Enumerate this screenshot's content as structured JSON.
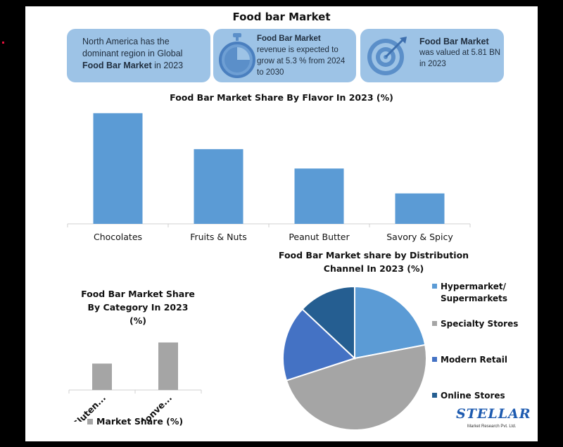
{
  "title": "Food bar Market",
  "info_boxes": [
    {
      "text_pre": "North America has the dominant region in Global ",
      "text_bold": "Food Bar Market",
      "text_post": " in 2023"
    },
    {
      "heading": "Food Bar Market",
      "body": "revenue is expected to grow at 5.3 % from 2024 to 2030",
      "icon": "stopwatch-icon"
    },
    {
      "heading": "Food Bar Market",
      "body": "was valued at 5.81 BN in 2023",
      "icon": "target-icon"
    }
  ],
  "colors": {
    "bar_blue": "#5b9bd5",
    "bar_gray": "#a5a5a5",
    "box_blue": "#9dc3e6",
    "pie_light_blue": "#5b9bd5",
    "pie_gray": "#a5a5a5",
    "pie_blue": "#4472c4",
    "pie_dark_blue": "#255e91"
  },
  "chart_data": [
    {
      "type": "bar",
      "title": "Food Bar Market Share By Flavor In 2023 (%)",
      "categories": [
        "Chocolates",
        "Fruits & Nuts",
        "Peanut Butter",
        "Savory & Spicy"
      ],
      "values": [
        40,
        27,
        20,
        11
      ],
      "xlabel": "",
      "ylabel": "",
      "ylim": [
        0,
        43
      ],
      "grid": false
    },
    {
      "type": "bar",
      "title_lines": [
        "Food Bar Market Share",
        "By Category In 2023",
        "(%)"
      ],
      "categories": [
        "Gluten...",
        "Conve..."
      ],
      "values": [
        35,
        63
      ],
      "series": [
        {
          "name": "Market Share (%)",
          "values": [
            35,
            63
          ]
        }
      ],
      "ylim": [
        0,
        70
      ],
      "grid": false,
      "legend": "bottom"
    },
    {
      "type": "pie",
      "title_lines": [
        "Food Bar Market share by Distribution",
        "Channel In 2023 (%)"
      ],
      "categories": [
        "Hypermarket/ Supermarkets",
        "Specialty Stores",
        "Modern Retail",
        "Online Stores"
      ],
      "values": [
        22,
        48,
        17,
        13
      ],
      "legend": "right"
    }
  ],
  "logo": {
    "name": "STELLAR",
    "sub": "Market Research Pvt. Ltd."
  }
}
